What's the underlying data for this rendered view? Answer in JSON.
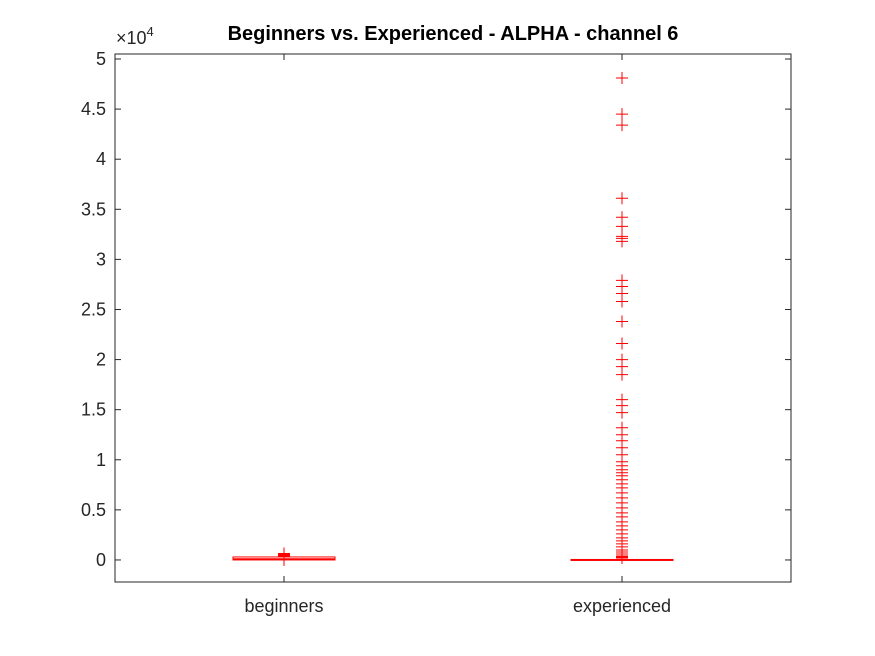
{
  "chart_data": {
    "type": "boxplot",
    "title": "Beginners vs. Experienced - ALPHA - channel 6",
    "xlabel": "",
    "ylabel": "",
    "y_multiplier": {
      "base": "×10",
      "exponent": "4"
    },
    "categories": [
      "beginners",
      "experienced"
    ],
    "ylim": [
      -0.22,
      5.05
    ],
    "yticks": [
      0,
      0.5,
      1,
      1.5,
      2,
      2.5,
      3,
      3.5,
      4,
      4.5,
      5
    ],
    "ytick_labels": [
      "0",
      "0.5",
      "1",
      "1.5",
      "2",
      "2.5",
      "3",
      "3.5",
      "4",
      "4.5",
      "5"
    ],
    "grid": false,
    "box_color": "#ff0000",
    "axis_color": "#262626",
    "boxes": [
      {
        "category": "beginners",
        "median": 0.01,
        "q1": 0.0,
        "q3": 0.03,
        "whisker_low": -0.06,
        "whisker_high": 0.08,
        "outliers": [
          0.04,
          0.05,
          0.055,
          0.06,
          0.065
        ]
      },
      {
        "category": "experienced",
        "median": 0.002,
        "q1": 0.0,
        "q3": 0.005,
        "whisker_low": -0.04,
        "whisker_high": 0.012,
        "outliers": [
          4.81,
          4.45,
          4.34,
          3.61,
          3.42,
          3.33,
          3.23,
          3.21,
          3.18,
          2.79,
          2.73,
          2.66,
          2.58,
          2.38,
          2.16,
          2.0,
          1.93,
          1.85,
          1.6,
          1.54,
          1.47,
          1.32,
          1.25,
          1.19,
          1.12,
          1.05,
          0.98,
          0.94,
          0.9,
          0.87,
          0.84,
          0.8,
          0.76,
          0.72,
          0.67,
          0.62,
          0.57,
          0.52,
          0.47,
          0.43,
          0.38,
          0.34,
          0.3,
          0.26,
          0.22,
          0.19,
          0.16,
          0.13,
          0.1,
          0.08,
          0.06,
          0.04,
          0.03,
          0.02
        ]
      }
    ]
  }
}
